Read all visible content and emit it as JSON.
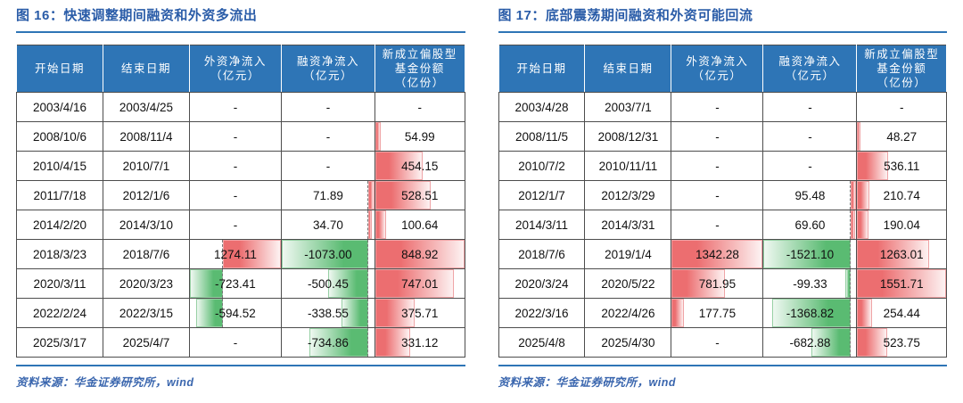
{
  "dash": "-",
  "source_note": "资料来源：华金证券研究所，wind",
  "colors": {
    "title_blue": "#2a5ca8",
    "header_bg": "#2e75b6",
    "rule_blue": "#2e75b6",
    "source_blue": "#3a66ae",
    "bar_red": "#ec6e70",
    "bar_red_tip": "#fdf2f2",
    "bar_red_border": "#efa4a6",
    "bar_green": "#5abb72",
    "bar_green_tip": "#eff8f1",
    "bar_green_border": "#97d0a4",
    "grid": "#4d4d4d",
    "axis_line": "#777777",
    "text": "#111111"
  },
  "chart_data": [
    {
      "type": "table",
      "title": "图 16：快速调整期间融资和外资多流出",
      "columns": [
        "开始日期",
        "结束日期",
        "外资净流入\n（亿元）",
        "融资净流入\n（亿元）",
        "新成立偏股型\n基金份额\n（亿份）"
      ],
      "numeric_columns": [
        2,
        3,
        4
      ],
      "bar_style": "gradient-databar, red=positive, green=negative, dashed axis line in columns containing negatives",
      "rows": [
        [
          "2003/4/16",
          "2003/4/25",
          null,
          null,
          null
        ],
        [
          "2008/10/6",
          "2008/11/4",
          null,
          null,
          54.99
        ],
        [
          "2010/4/15",
          "2010/7/1",
          null,
          null,
          454.15
        ],
        [
          "2011/7/18",
          "2012/1/6",
          null,
          71.89,
          528.51
        ],
        [
          "2014/2/20",
          "2014/3/10",
          null,
          34.7,
          100.64
        ],
        [
          "2018/3/23",
          "2018/7/6",
          1274.11,
          -1073.0,
          848.92
        ],
        [
          "2020/3/11",
          "2020/3/23",
          -723.41,
          -500.45,
          747.01
        ],
        [
          "2022/2/24",
          "2022/3/15",
          -594.52,
          -338.55,
          375.71
        ],
        [
          "2025/3/17",
          "2025/4/7",
          null,
          -734.86,
          331.12
        ]
      ]
    },
    {
      "type": "table",
      "title": "图 17：底部震荡期间融资和外资可能回流",
      "columns": [
        "开始日期",
        "结束日期",
        "外资净流入\n（亿元）",
        "融资净流入\n（亿元）",
        "新成立偏股型\n基金份额\n（亿份）"
      ],
      "numeric_columns": [
        2,
        3,
        4
      ],
      "bar_style": "gradient-databar, red=positive, green=negative, dashed axis line in columns containing negatives",
      "rows": [
        [
          "2003/4/28",
          "2003/7/1",
          null,
          null,
          null
        ],
        [
          "2008/11/5",
          "2008/12/31",
          null,
          null,
          48.27
        ],
        [
          "2010/7/2",
          "2010/11/11",
          null,
          null,
          536.11
        ],
        [
          "2012/1/7",
          "2012/3/29",
          null,
          95.48,
          210.74
        ],
        [
          "2014/3/11",
          "2014/3/31",
          null,
          69.6,
          190.04
        ],
        [
          "2018/7/6",
          "2019/1/4",
          1342.28,
          -1521.1,
          1263.01
        ],
        [
          "2020/3/24",
          "2020/5/22",
          781.95,
          -99.33,
          1551.71
        ],
        [
          "2022/3/16",
          "2022/4/26",
          177.75,
          -1368.82,
          254.44
        ],
        [
          "2025/4/8",
          "2025/4/30",
          null,
          -682.88,
          523.75
        ]
      ]
    }
  ]
}
